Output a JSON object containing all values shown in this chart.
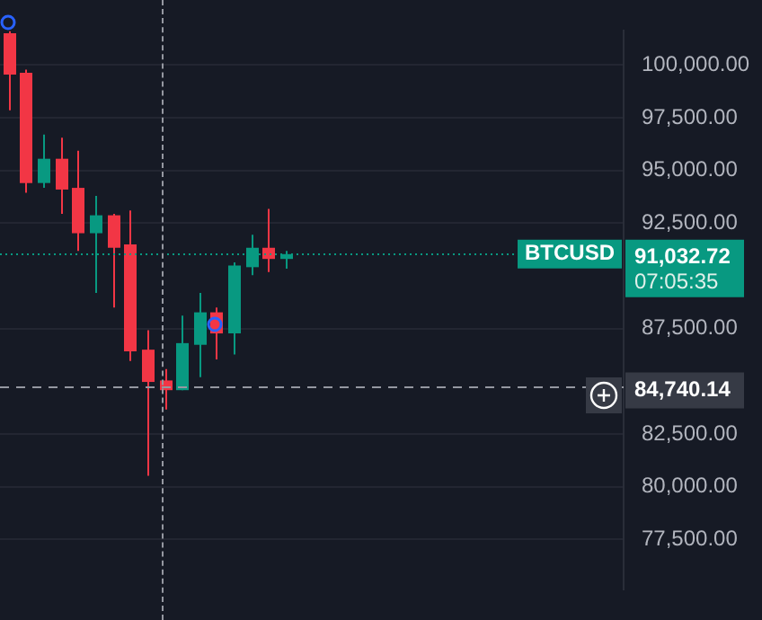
{
  "chart_data": {
    "type": "candlestick",
    "categories": [
      null,
      null,
      null,
      null,
      null,
      null,
      null,
      null,
      null,
      null,
      null,
      null,
      null,
      null,
      null,
      null,
      null,
      null,
      null,
      null,
      null,
      null,
      null,
      null,
      null,
      null,
      null,
      null,
      null,
      null,
      null,
      null,
      null,
      null,
      null,
      null
    ],
    "ohlc": [
      [
        101500,
        101600,
        97850,
        99540
      ],
      [
        99620,
        99770,
        93940,
        94400
      ],
      [
        94400,
        96700,
        94170,
        95550
      ],
      [
        95550,
        96550,
        92940,
        94090
      ],
      [
        94170,
        95930,
        91180,
        92020
      ],
      [
        92020,
        93790,
        89190,
        92870
      ],
      [
        92870,
        92940,
        88500,
        91330
      ],
      [
        91490,
        93100,
        85960,
        86420
      ],
      [
        86500,
        87420,
        80520,
        84970
      ],
      [
        85040,
        85580,
        83660,
        84580
      ],
      [
        84580,
        88110,
        84580,
        86810
      ],
      [
        86730,
        89190,
        85200,
        88270
      ],
      [
        88270,
        88500,
        86040,
        87270
      ],
      [
        87270,
        90640,
        86270,
        90490
      ],
      [
        90410,
        91950,
        90030,
        91330
      ],
      [
        91330,
        93170,
        90180,
        90800
      ],
      [
        90800,
        91180,
        90340,
        91030
      ],
      null,
      null,
      null,
      null,
      null,
      null,
      null,
      null,
      null,
      null,
      null,
      null,
      null,
      null,
      null,
      null,
      null,
      null,
      null
    ],
    "colors": [
      "#f23645",
      "#f23645",
      "#089981",
      "#f23645",
      "#f23645",
      "#089981",
      "#f23645",
      "#f23645",
      "#f23645",
      "#f23645",
      "#089981",
      "#089981",
      "#f23645",
      "#089981",
      "#089981",
      "#f23645",
      "#089981",
      null,
      null,
      null,
      null,
      null,
      null,
      null,
      null,
      null,
      null,
      null,
      null,
      null,
      null,
      null,
      null,
      null,
      null,
      null
    ],
    "ylim": [
      75150,
      101610
    ],
    "yticks": [
      {
        "value": 77500,
        "label": "77,500.00"
      },
      {
        "value": 80000,
        "label": "80,000.00"
      },
      {
        "value": 82500,
        "label": "82,500.00"
      },
      {
        "value": 87500,
        "label": "87,500.00"
      },
      {
        "value": 92500,
        "label": "92,500.00"
      },
      {
        "value": 95000,
        "label": "95,000.00"
      },
      {
        "value": 97500,
        "label": "97,500.00"
      },
      {
        "value": 100000,
        "label": "100,000.00"
      }
    ],
    "grid": "y",
    "tick_labels": "y",
    "ref_lines": [
      {
        "axis": "y",
        "value": 91032.72,
        "label": "91,032.72",
        "color": "#089981",
        "line_style": "dotted"
      },
      {
        "axis": "y",
        "value": 84740.14,
        "label": "84,740.14",
        "color": "#9598a1",
        "line_style": "dashed"
      }
    ],
    "annotations": [
      "BTCUSD",
      "07:05:35"
    ]
  }
}
